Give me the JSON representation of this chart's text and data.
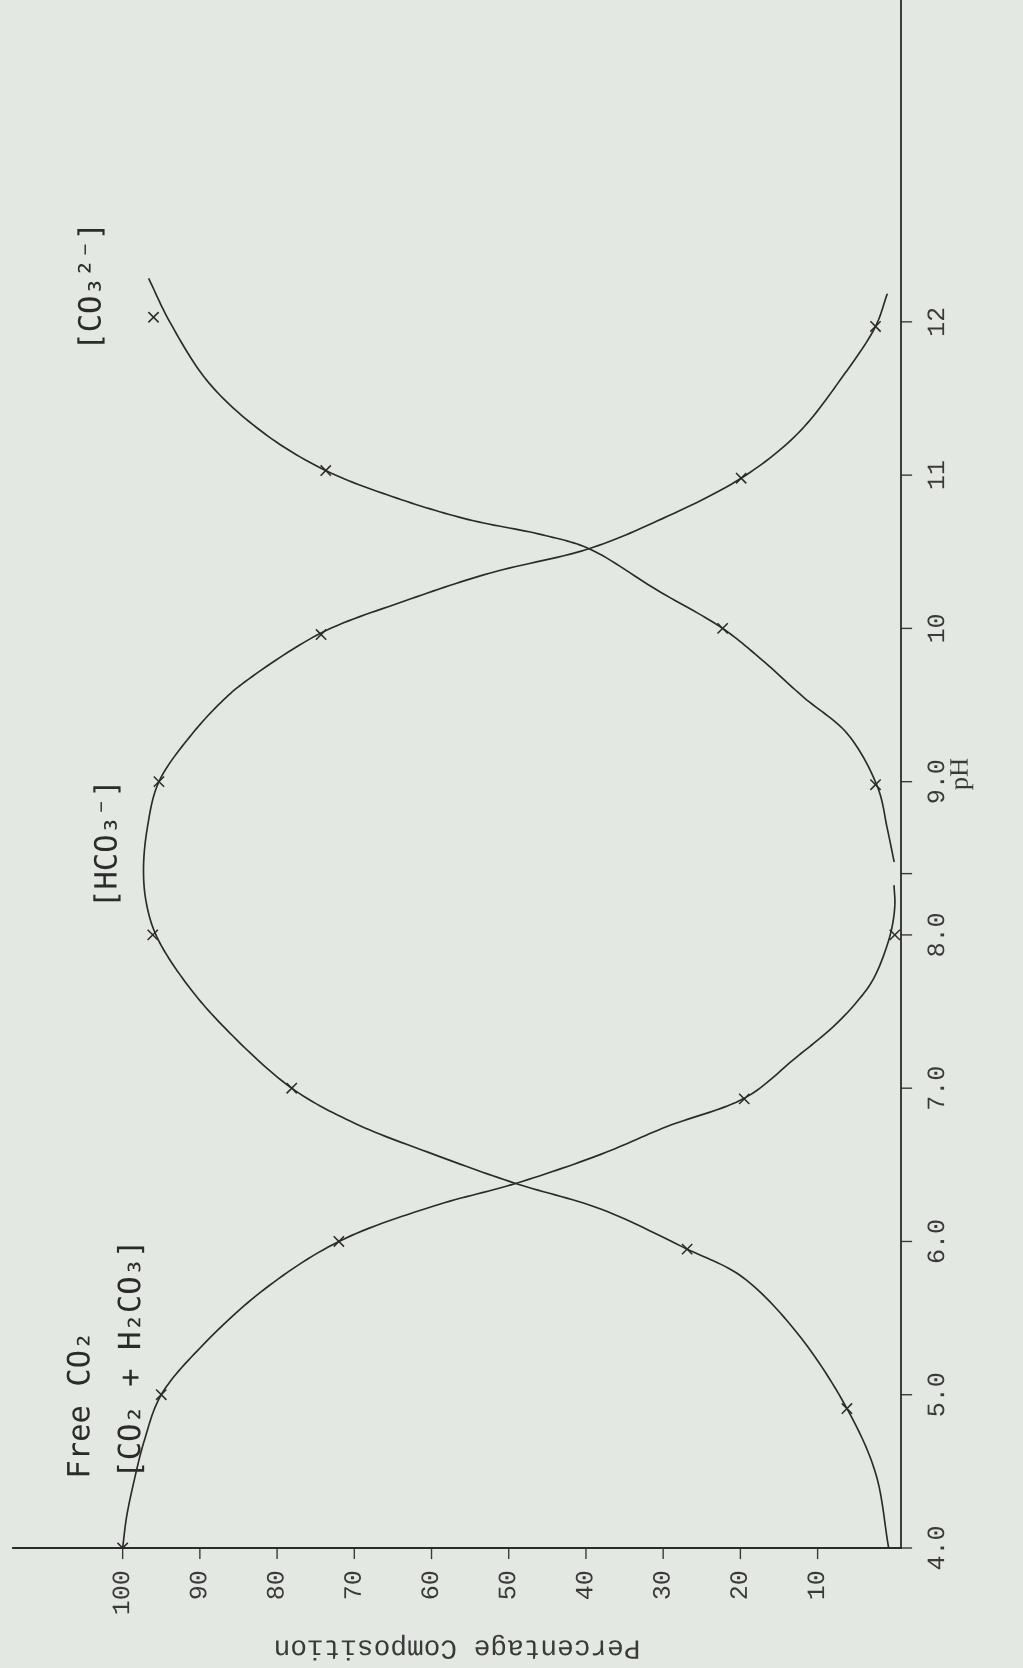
{
  "chart_data": {
    "type": "line",
    "xlabel": "Percentage Composition",
    "ylabel": "pH",
    "xlim": [
      114.2,
      -0.8
    ],
    "ylim": [
      4.0,
      14.1
    ],
    "xticks": [
      100,
      90,
      80,
      70,
      60,
      50,
      40,
      30,
      20,
      10
    ],
    "yticks": [
      {
        "value": 4,
        "label": "4.0"
      },
      {
        "value": 5,
        "label": "5.0"
      },
      {
        "value": 6,
        "label": "6.0"
      },
      {
        "value": 7,
        "label": "7.0"
      },
      {
        "value": 8,
        "label": "8.0"
      },
      {
        "value": 8.4,
        "label": null
      },
      {
        "value": 9,
        "label": "9.0"
      },
      10,
      11,
      12
    ],
    "series": [
      {
        "name": "Free CO₂\n[CO₂ + H₂CO₃]",
        "color": "#2b2b2b",
        "line_style": "solid",
        "x": [
          100,
          99.5,
          98.6,
          97.2,
          95,
          89.5,
          81.6,
          72,
          59.8,
          49,
          38,
          29.5,
          19.3,
          12.8,
          8,
          4.8,
          2.7,
          0.6,
          0,
          0.1
        ],
        "values": [
          4.0,
          4.2,
          4.42,
          4.7,
          5.0,
          5.33,
          5.69,
          6.0,
          6.23,
          6.38,
          6.57,
          6.75,
          6.94,
          7.2,
          7.4,
          7.57,
          7.72,
          8.0,
          8.19,
          8.32
        ]
      },
      {
        "name": "[HCO₃⁻]",
        "color": "#2b2b2b",
        "line_style": "solid",
        "x": [
          0.8,
          2.5,
          6.2,
          12.6,
          19.8,
          26.9,
          38,
          49.2,
          59.8,
          69.9,
          78.1,
          86.7,
          91.7,
          95.6,
          96.9,
          97.3,
          96.8,
          95.3,
          90.7,
          86.8,
          84.2,
          74.3,
          63.4,
          52.5,
          39.6,
          30.8,
          19.9,
          12.6,
          6.8,
          2.5,
          1
        ],
        "values": [
          4.0,
          4.49,
          4.91,
          5.4,
          5.77,
          5.95,
          6.21,
          6.38,
          6.57,
          6.77,
          7.0,
          7.39,
          7.68,
          7.99,
          8.2,
          8.42,
          8.7,
          9.0,
          9.33,
          9.54,
          9.65,
          9.97,
          10.18,
          10.36,
          10.52,
          10.7,
          10.98,
          11.27,
          11.64,
          11.97,
          12.18
        ]
      },
      {
        "name": "[CO₃²⁻]",
        "color": "#2b2b2b",
        "line_style": "solid",
        "x": [
          0.1,
          1.0,
          2.2,
          6.1,
          11.8,
          17.1,
          22.3,
          30.8,
          39.6,
          45.6,
          55.2,
          64.5,
          73.7,
          81.6,
          88.8,
          93.9,
          96.6
        ],
        "values": [
          8.48,
          8.7,
          8.96,
          9.31,
          9.55,
          9.79,
          10.0,
          10.25,
          10.52,
          10.61,
          10.71,
          10.85,
          11.03,
          11.27,
          11.6,
          12.0,
          12.28
        ]
      },
      {
        "type": "scatter",
        "color": "#2b2b2b",
        "marker": "cross",
        "x": [
          100,
          95,
          72,
          19.5,
          0
        ],
        "values": [
          4.0,
          5.0,
          6.0,
          6.93,
          8.0
        ]
      },
      {
        "type": "scatter",
        "color": "#2b2b2b",
        "marker": "cross",
        "x": [
          6.2,
          26.9,
          78.1,
          96.1,
          95.3,
          74.3,
          19.9,
          2.5
        ],
        "values": [
          4.91,
          5.95,
          7.0,
          8.0,
          9.0,
          9.96,
          10.98,
          11.97
        ]
      },
      {
        "type": "scatter",
        "color": "#2b2b2b",
        "marker": "cross",
        "x": [
          2.5,
          22.3,
          73.7,
          96
        ],
        "values": [
          8.98,
          10.0,
          11.03,
          12.03
        ]
      }
    ]
  }
}
